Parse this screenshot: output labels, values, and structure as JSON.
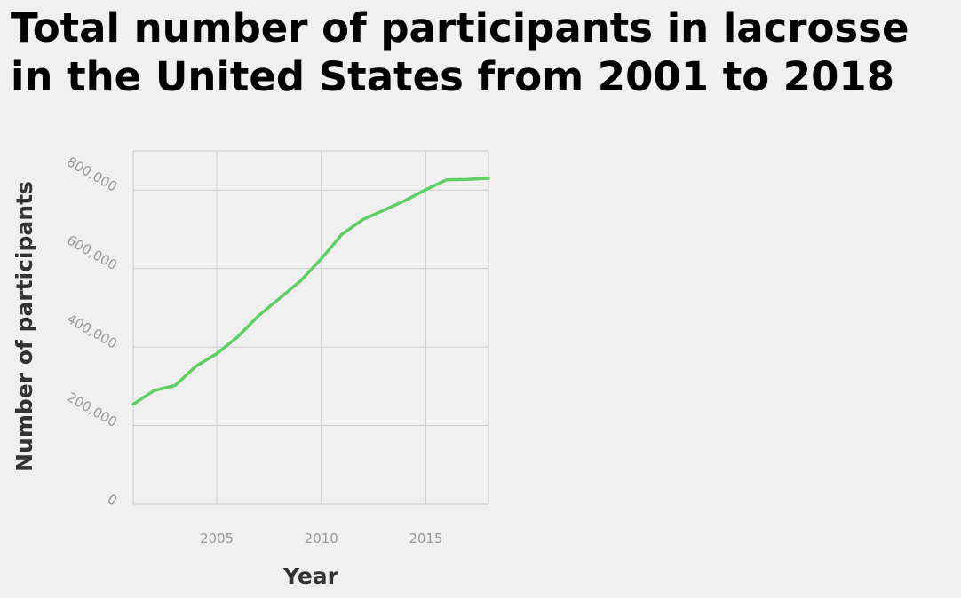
{
  "chart_data": {
    "type": "line",
    "title_lines": [
      "Total number of participants in lacrosse",
      "in the United States from 2001 to 2018"
    ],
    "xlabel": "Year",
    "ylabel": "Number of participants",
    "xlim": [
      2001,
      2018
    ],
    "ylim": [
      0,
      900000
    ],
    "xticks": [
      2005,
      2010,
      2015
    ],
    "xtick_labels": [
      "2005",
      "2010",
      "2015"
    ],
    "yticks": [
      0,
      200000,
      400000,
      600000,
      800000
    ],
    "ytick_labels": [
      "0",
      "200,000",
      "400,000",
      "600,000",
      "800,000"
    ],
    "grid": true,
    "legend": "none",
    "series": [
      {
        "color": "#5ecf64",
        "x": [
          2001,
          2002,
          2003,
          2004,
          2005,
          2006,
          2007,
          2008,
          2009,
          2010,
          2011,
          2012,
          2013,
          2014,
          2015,
          2016,
          2017,
          2018
        ],
        "y": [
          253931,
          289000,
          302000,
          351000,
          383000,
          426000,
          480000,
          524000,
          568000,
          625000,
          688000,
          725000,
          749000,
          773000,
          801000,
          826000,
          827000,
          830000
        ]
      }
    ]
  }
}
